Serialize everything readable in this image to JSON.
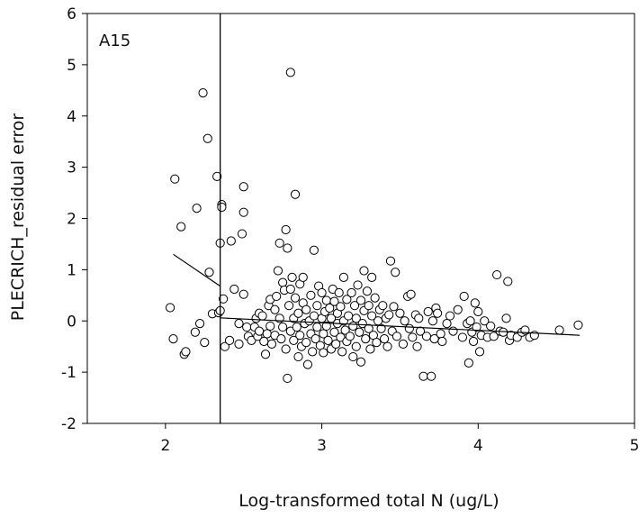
{
  "chart_data": {
    "type": "scatter",
    "panel_label": "A15",
    "xlabel": "Log-transformed total N (ug/L)",
    "ylabel": "PLECRICH_residual error",
    "xlim": [
      1.5,
      5
    ],
    "ylim": [
      -2,
      6
    ],
    "xticks": [
      "2",
      "3",
      "4",
      "5"
    ],
    "yticks": [
      "-2",
      "-1",
      "0",
      "1",
      "2",
      "3",
      "4",
      "5",
      "6"
    ],
    "grid": false,
    "legend": "none",
    "marker": "open-circle",
    "threshold_x": 2.35,
    "fit_segments": [
      {
        "x": [
          2.05,
          2.35
        ],
        "y": [
          1.3,
          0.68
        ]
      },
      {
        "x": [
          2.35,
          4.65
        ],
        "y": [
          0.06,
          -0.28
        ]
      }
    ],
    "points": [
      [
        2.03,
        0.26
      ],
      [
        2.05,
        -0.35
      ],
      [
        2.06,
        2.77
      ],
      [
        2.1,
        1.84
      ],
      [
        2.12,
        -0.65
      ],
      [
        2.13,
        -0.6
      ],
      [
        2.19,
        -0.22
      ],
      [
        2.2,
        2.2
      ],
      [
        2.22,
        -0.05
      ],
      [
        2.24,
        4.45
      ],
      [
        2.25,
        -0.42
      ],
      [
        2.27,
        3.56
      ],
      [
        2.28,
        0.95
      ],
      [
        2.3,
        0.14
      ],
      [
        2.33,
        2.82
      ],
      [
        2.34,
        0.16
      ],
      [
        2.35,
        0.2
      ],
      [
        2.35,
        1.52
      ],
      [
        2.36,
        2.27
      ],
      [
        2.36,
        2.22
      ],
      [
        2.37,
        0.43
      ],
      [
        2.38,
        -0.5
      ],
      [
        2.42,
        1.56
      ],
      [
        2.44,
        0.62
      ],
      [
        2.47,
        -0.05
      ],
      [
        2.49,
        1.7
      ],
      [
        2.5,
        2.62
      ],
      [
        2.5,
        0.52
      ],
      [
        2.5,
        2.12
      ],
      [
        2.52,
        -0.12
      ],
      [
        2.53,
        -0.3
      ],
      [
        2.41,
        -0.38
      ],
      [
        2.47,
        -0.45
      ],
      [
        2.55,
        -0.38
      ],
      [
        2.57,
        -0.12
      ],
      [
        2.58,
        0.05
      ],
      [
        2.59,
        -0.3
      ],
      [
        2.6,
        0.15
      ],
      [
        2.6,
        -0.2
      ],
      [
        2.62,
        0.1
      ],
      [
        2.63,
        -0.4
      ],
      [
        2.64,
        -0.65
      ],
      [
        2.65,
        -0.25
      ],
      [
        2.66,
        0.3
      ],
      [
        2.67,
        -0.1
      ],
      [
        2.67,
        0.42
      ],
      [
        2.68,
        -0.45
      ],
      [
        2.7,
        0.22
      ],
      [
        2.7,
        -0.28
      ],
      [
        2.71,
        0.48
      ],
      [
        2.72,
        0.98
      ],
      [
        2.73,
        1.52
      ],
      [
        2.73,
        0.05
      ],
      [
        2.74,
        -0.35
      ],
      [
        2.75,
        0.75
      ],
      [
        2.75,
        -0.12
      ],
      [
        2.76,
        0.6
      ],
      [
        2.77,
        -0.55
      ],
      [
        2.77,
        1.78
      ],
      [
        2.78,
        1.42
      ],
      [
        2.78,
        -1.12
      ],
      [
        2.79,
        0.3
      ],
      [
        2.8,
        0.62
      ],
      [
        2.8,
        -0.2
      ],
      [
        2.8,
        4.85
      ],
      [
        2.81,
        0.85
      ],
      [
        2.82,
        0.05
      ],
      [
        2.82,
        -0.38
      ],
      [
        2.83,
        2.47
      ],
      [
        2.83,
        0.45
      ],
      [
        2.84,
        -0.12
      ],
      [
        2.85,
        0.15
      ],
      [
        2.85,
        -0.7
      ],
      [
        2.86,
        0.72
      ],
      [
        2.86,
        -0.28
      ],
      [
        2.87,
        -0.5
      ],
      [
        2.88,
        0.35
      ],
      [
        2.88,
        0.85
      ],
      [
        2.89,
        -0.05
      ],
      [
        2.9,
        0.22
      ],
      [
        2.9,
        -0.42
      ],
      [
        2.91,
        -0.85
      ],
      [
        2.92,
        0.0
      ],
      [
        2.93,
        -0.25
      ],
      [
        2.93,
        0.5
      ],
      [
        2.94,
        -0.6
      ],
      [
        2.95,
        1.38
      ],
      [
        2.95,
        0.1
      ],
      [
        2.96,
        -0.35
      ],
      [
        2.97,
        0.3
      ],
      [
        2.97,
        -0.12
      ],
      [
        2.98,
        0.68
      ],
      [
        2.99,
        -0.48
      ],
      [
        3.0,
        0.05
      ],
      [
        3.0,
        0.55
      ],
      [
        3.01,
        -0.25
      ],
      [
        3.01,
        -0.62
      ],
      [
        3.02,
        0.18
      ],
      [
        3.03,
        0.4
      ],
      [
        3.03,
        -0.1
      ],
      [
        3.04,
        -0.38
      ],
      [
        3.05,
        0.25
      ],
      [
        3.06,
        -0.55
      ],
      [
        3.06,
        0.05
      ],
      [
        3.07,
        0.62
      ],
      [
        3.08,
        -0.22
      ],
      [
        3.08,
        0.38
      ],
      [
        3.09,
        -0.45
      ],
      [
        3.1,
        0.15
      ],
      [
        3.1,
        -0.05
      ],
      [
        3.11,
        0.55
      ],
      [
        3.12,
        -0.32
      ],
      [
        3.12,
        0.28
      ],
      [
        3.13,
        -0.6
      ],
      [
        3.14,
        0.0
      ],
      [
        3.14,
        0.85
      ],
      [
        3.15,
        -0.18
      ],
      [
        3.16,
        0.42
      ],
      [
        3.16,
        -0.4
      ],
      [
        3.17,
        0.1
      ],
      [
        3.18,
        -0.3
      ],
      [
        3.19,
        0.55
      ],
      [
        3.2,
        -0.1
      ],
      [
        3.2,
        -0.7
      ],
      [
        3.21,
        0.3
      ],
      [
        3.22,
        -0.5
      ],
      [
        3.22,
        0.05
      ],
      [
        3.23,
        0.7
      ],
      [
        3.24,
        -0.22
      ],
      [
        3.25,
        0.4
      ],
      [
        3.25,
        -0.8
      ],
      [
        3.26,
        -0.05
      ],
      [
        3.27,
        0.98
      ],
      [
        3.27,
        0.2
      ],
      [
        3.28,
        -0.35
      ],
      [
        3.29,
        0.58
      ],
      [
        3.3,
        -0.15
      ],
      [
        3.3,
        0.3
      ],
      [
        3.31,
        -0.55
      ],
      [
        3.32,
        0.85
      ],
      [
        3.32,
        0.1
      ],
      [
        3.33,
        -0.28
      ],
      [
        3.34,
        0.45
      ],
      [
        3.35,
        -0.42
      ],
      [
        3.36,
        0.0
      ],
      [
        3.37,
        0.22
      ],
      [
        3.38,
        -0.15
      ],
      [
        3.39,
        0.3
      ],
      [
        3.4,
        -0.35
      ],
      [
        3.41,
        0.05
      ],
      [
        3.42,
        -0.5
      ],
      [
        3.43,
        0.12
      ],
      [
        3.44,
        1.17
      ],
      [
        3.45,
        -0.2
      ],
      [
        3.46,
        0.28
      ],
      [
        3.47,
        0.95
      ],
      [
        3.48,
        -0.3
      ],
      [
        3.5,
        0.15
      ],
      [
        3.52,
        -0.45
      ],
      [
        3.53,
        0.0
      ],
      [
        3.55,
        0.48
      ],
      [
        3.56,
        -0.15
      ],
      [
        3.57,
        0.52
      ],
      [
        3.58,
        -0.32
      ],
      [
        3.6,
        0.12
      ],
      [
        3.61,
        -0.5
      ],
      [
        3.62,
        0.05
      ],
      [
        3.63,
        -0.2
      ],
      [
        3.65,
        -1.08
      ],
      [
        3.67,
        -0.3
      ],
      [
        3.68,
        0.18
      ],
      [
        3.7,
        -1.08
      ],
      [
        3.71,
        0.0
      ],
      [
        3.72,
        -0.35
      ],
      [
        3.73,
        0.25
      ],
      [
        3.74,
        0.15
      ],
      [
        3.76,
        -0.25
      ],
      [
        3.77,
        -0.4
      ],
      [
        3.8,
        -0.05
      ],
      [
        3.82,
        0.1
      ],
      [
        3.84,
        -0.2
      ],
      [
        3.87,
        0.22
      ],
      [
        3.9,
        -0.32
      ],
      [
        3.91,
        0.48
      ],
      [
        3.93,
        -0.05
      ],
      [
        3.94,
        -0.82
      ],
      [
        3.95,
        0.0
      ],
      [
        3.96,
        -0.22
      ],
      [
        3.97,
        -0.4
      ],
      [
        3.98,
        0.35
      ],
      [
        3.99,
        -0.12
      ],
      [
        4.0,
        0.18
      ],
      [
        4.01,
        -0.6
      ],
      [
        4.02,
        -0.28
      ],
      [
        4.04,
        0.0
      ],
      [
        4.06,
        -0.32
      ],
      [
        4.08,
        -0.1
      ],
      [
        4.1,
        -0.3
      ],
      [
        4.12,
        0.9
      ],
      [
        4.14,
        -0.2
      ],
      [
        4.16,
        -0.22
      ],
      [
        4.18,
        0.05
      ],
      [
        4.19,
        0.77
      ],
      [
        4.2,
        -0.38
      ],
      [
        4.21,
        -0.28
      ],
      [
        4.25,
        -0.32
      ],
      [
        4.28,
        -0.22
      ],
      [
        4.3,
        -0.18
      ],
      [
        4.33,
        -0.32
      ],
      [
        4.36,
        -0.28
      ],
      [
        4.52,
        -0.18
      ],
      [
        4.64,
        -0.08
      ]
    ]
  }
}
